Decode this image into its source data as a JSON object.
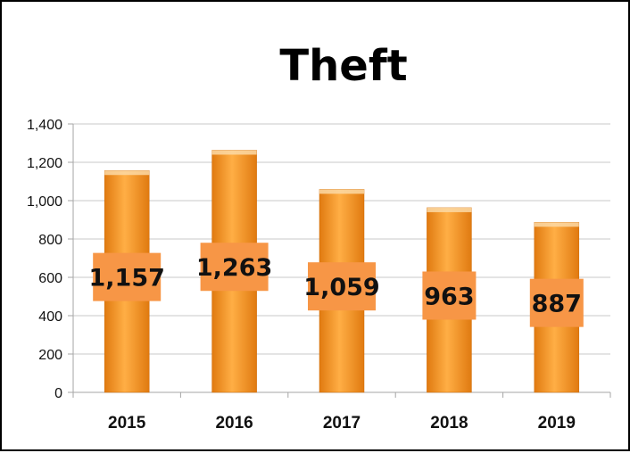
{
  "chart_data": {
    "type": "bar",
    "title": "Theft",
    "xlabel": "",
    "ylabel": "",
    "categories": [
      "2015",
      "2016",
      "2017",
      "2018",
      "2019"
    ],
    "values": [
      1157,
      1263,
      1059,
      963,
      887
    ],
    "data_labels": [
      "1,157",
      "1,263",
      "1,059",
      "963",
      "887"
    ],
    "ylim": [
      0,
      1400
    ],
    "yticks": [
      0,
      200,
      400,
      600,
      800,
      1000,
      1200,
      1400
    ],
    "ytick_labels": [
      "0",
      "200",
      "400",
      "600",
      "800",
      "1,000",
      "1,200",
      "1,400"
    ],
    "grid": true,
    "legend": "none",
    "colors": {
      "bar_top": "#ffb347",
      "bar_mid": "#f7941d",
      "bar_bottom": "#e07a10",
      "bar_cap": "#fcd9a6",
      "label_box": "#f79646",
      "grid": "#c8c8c8",
      "axis": "#a6a6a6"
    }
  }
}
